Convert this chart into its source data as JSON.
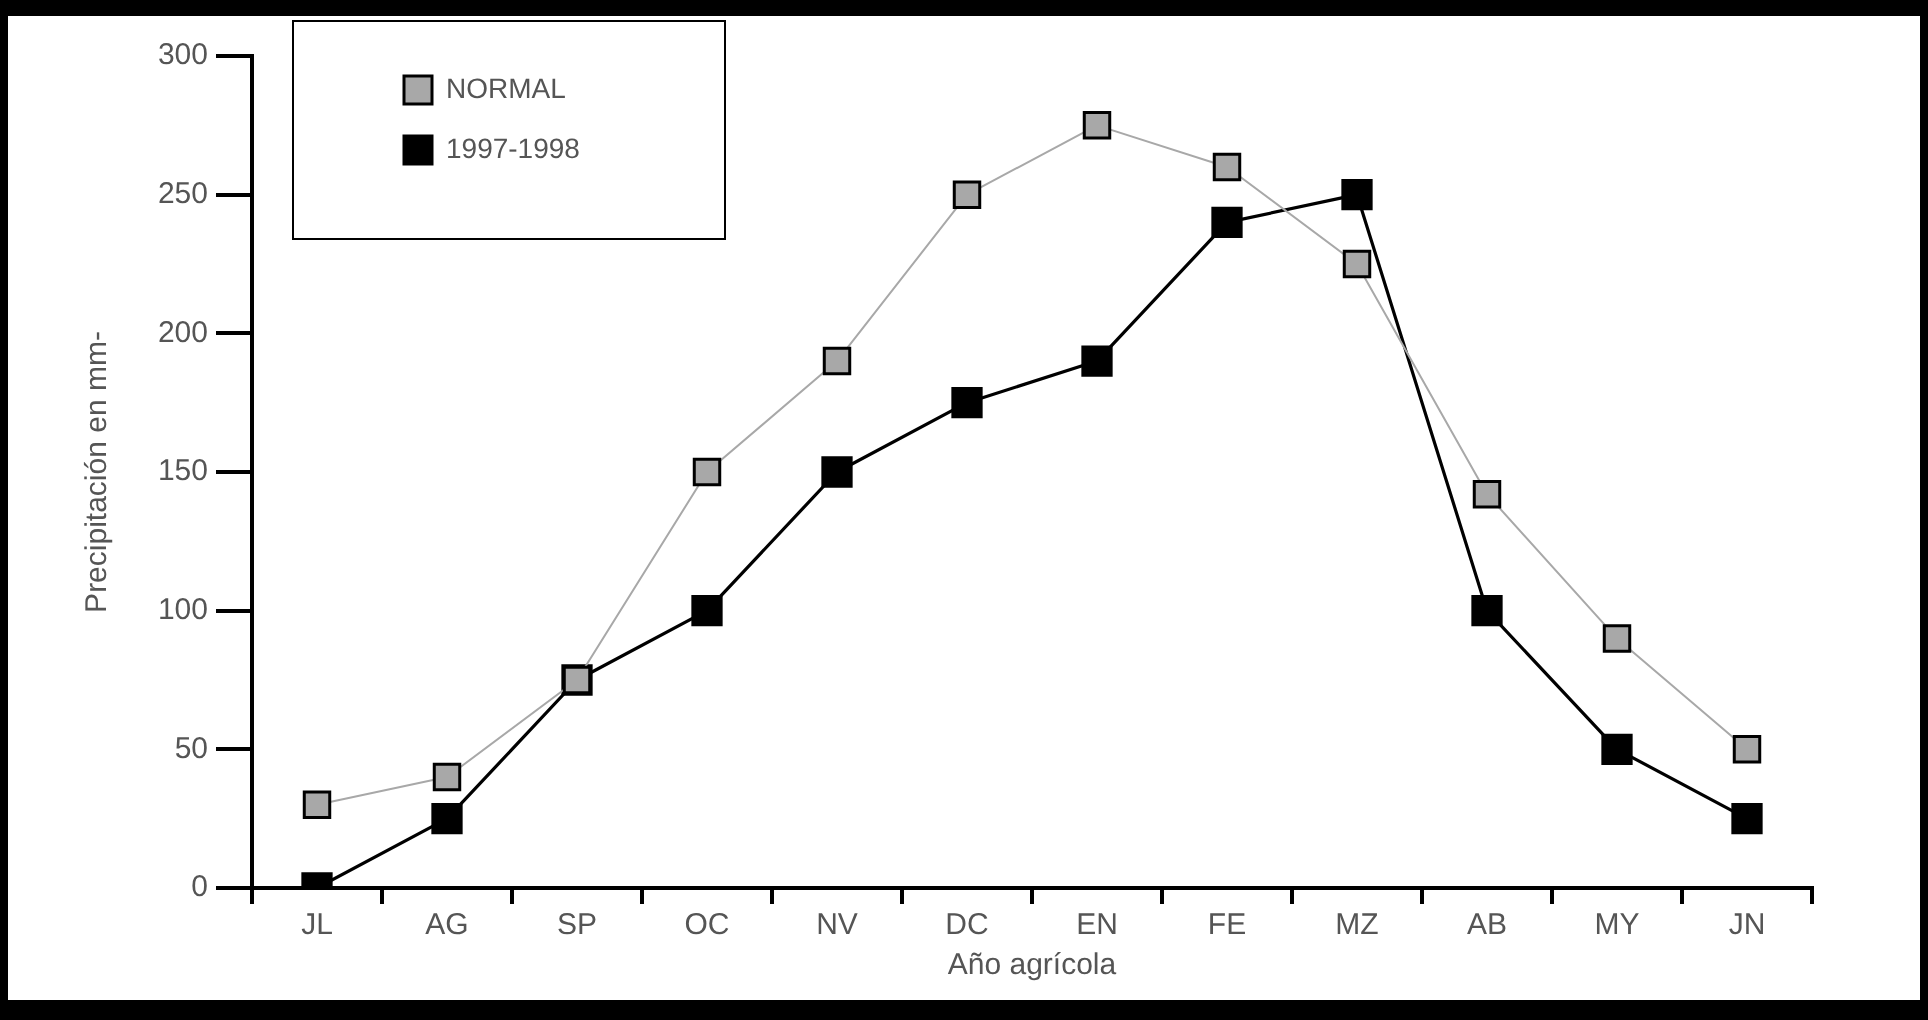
{
  "chart_data": {
    "type": "line",
    "xlabel": "Año agrícola",
    "ylabel": "Precipitación en mm-",
    "categories": [
      "JL",
      "AG",
      "SP",
      "OC",
      "NV",
      "DC",
      "EN",
      "FE",
      "MZ",
      "AB",
      "MY",
      "JN"
    ],
    "series": [
      {
        "name": "NORMAL",
        "color": "#a8a8a8",
        "values": [
          30,
          40,
          75,
          150,
          190,
          250,
          275,
          260,
          225,
          142,
          90,
          50
        ]
      },
      {
        "name": "1997-1998",
        "color": "#000000",
        "values": [
          0,
          25,
          75,
          100,
          150,
          175,
          190,
          240,
          250,
          100,
          50,
          25
        ]
      }
    ],
    "ylim": [
      0,
      300
    ],
    "yticks": [
      0,
      50,
      100,
      150,
      200,
      250,
      300
    ],
    "grid": false,
    "legend": "top left",
    "marker": "square",
    "line_style": "solid"
  }
}
